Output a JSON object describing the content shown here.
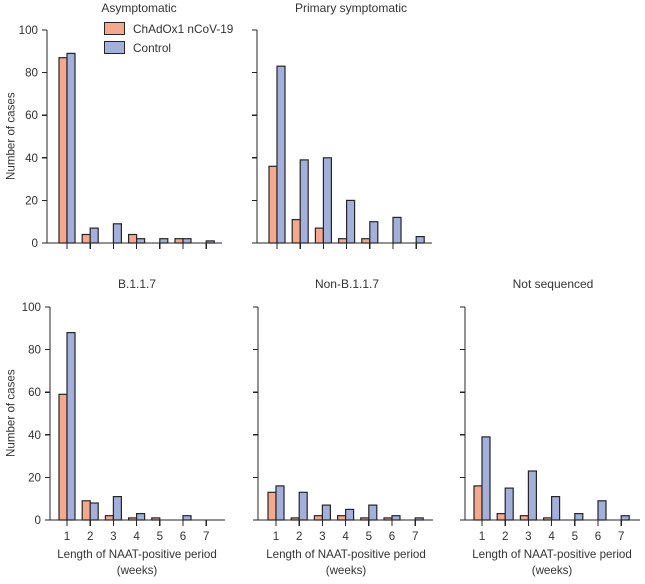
{
  "figure": {
    "background": "#ffffff",
    "text_color": "#333333",
    "axis_color": "#262626",
    "bar_stroke": "#262626"
  },
  "legend": {
    "items": [
      {
        "label": "ChAdOx1 nCoV-19",
        "color": "#f4a98e"
      },
      {
        "label": "Control",
        "color": "#a2b0db"
      }
    ]
  },
  "chart_data": [
    {
      "type": "bar",
      "title": "Asymptomatic",
      "categories": [
        "1",
        "2",
        "3",
        "4",
        "5",
        "6",
        "7"
      ],
      "series": [
        {
          "name": "ChAdOx1 nCoV-19",
          "color": "#f4a98e",
          "values": [
            87,
            4,
            0,
            4,
            0,
            2,
            0
          ]
        },
        {
          "name": "Control",
          "color": "#a2b0db",
          "values": [
            89,
            7,
            9,
            2,
            2,
            2,
            1
          ]
        }
      ],
      "ylabel": "Number of cases",
      "xlabel_line1": "",
      "xlabel_line2": "",
      "ylim": [
        0,
        100
      ],
      "yticks": [
        0,
        20,
        40,
        60,
        80,
        100
      ],
      "show_ytick_labels": true,
      "show_xtick_labels": false,
      "has_legend": true
    },
    {
      "type": "bar",
      "title": "Primary symptomatic",
      "categories": [
        "1",
        "2",
        "3",
        "4",
        "5",
        "6",
        "7"
      ],
      "series": [
        {
          "name": "ChAdOx1 nCoV-19",
          "color": "#f4a98e",
          "values": [
            36,
            11,
            7,
            2,
            2,
            0,
            0
          ]
        },
        {
          "name": "Control",
          "color": "#a2b0db",
          "values": [
            83,
            39,
            40,
            20,
            10,
            12,
            3
          ]
        }
      ],
      "ylabel": "",
      "xlabel_line1": "",
      "xlabel_line2": "",
      "ylim": [
        0,
        100
      ],
      "yticks": [
        0,
        20,
        40,
        60,
        80,
        100
      ],
      "show_ytick_labels": false,
      "show_xtick_labels": false,
      "has_legend": false
    },
    {
      "type": "bar",
      "title": "B.1.1.7",
      "categories": [
        "1",
        "2",
        "3",
        "4",
        "5",
        "6",
        "7"
      ],
      "series": [
        {
          "name": "ChAdOx1 nCoV-19",
          "color": "#f4a98e",
          "values": [
            59,
            9,
            2,
            1,
            1,
            0,
            0
          ]
        },
        {
          "name": "Control",
          "color": "#a2b0db",
          "values": [
            88,
            8,
            11,
            3,
            0,
            2,
            0
          ]
        }
      ],
      "ylabel": "Number of cases",
      "xlabel_line1": "Length of NAAT-positive period",
      "xlabel_line2": "(weeks)",
      "ylim": [
        0,
        100
      ],
      "yticks": [
        0,
        20,
        40,
        60,
        80,
        100
      ],
      "show_ytick_labels": true,
      "show_xtick_labels": true,
      "has_legend": false
    },
    {
      "type": "bar",
      "title": "Non-B.1.1.7",
      "categories": [
        "1",
        "2",
        "3",
        "4",
        "5",
        "6",
        "7"
      ],
      "series": [
        {
          "name": "ChAdOx1 nCoV-19",
          "color": "#f4a98e",
          "values": [
            13,
            1,
            2,
            2,
            1,
            1,
            0
          ]
        },
        {
          "name": "Control",
          "color": "#a2b0db",
          "values": [
            16,
            13,
            7,
            5,
            7,
            2,
            1
          ]
        }
      ],
      "ylabel": "",
      "xlabel_line1": "Length of NAAT-positive period",
      "xlabel_line2": "(weeks)",
      "ylim": [
        0,
        100
      ],
      "yticks": [
        0,
        20,
        40,
        60,
        80,
        100
      ],
      "show_ytick_labels": false,
      "show_xtick_labels": true,
      "has_legend": false
    },
    {
      "type": "bar",
      "title": "Not sequenced",
      "categories": [
        "1",
        "2",
        "3",
        "4",
        "5",
        "6",
        "7"
      ],
      "series": [
        {
          "name": "ChAdOx1 nCoV-19",
          "color": "#f4a98e",
          "values": [
            16,
            3,
            2,
            1,
            0,
            0,
            0
          ]
        },
        {
          "name": "Control",
          "color": "#a2b0db",
          "values": [
            39,
            15,
            23,
            11,
            3,
            9,
            2
          ]
        }
      ],
      "ylabel": "",
      "xlabel_line1": "Length of NAAT-positive period",
      "xlabel_line2": "(weeks)",
      "ylim": [
        0,
        100
      ],
      "yticks": [
        0,
        20,
        40,
        60,
        80,
        100
      ],
      "show_ytick_labels": false,
      "show_xtick_labels": true,
      "has_legend": false
    }
  ]
}
